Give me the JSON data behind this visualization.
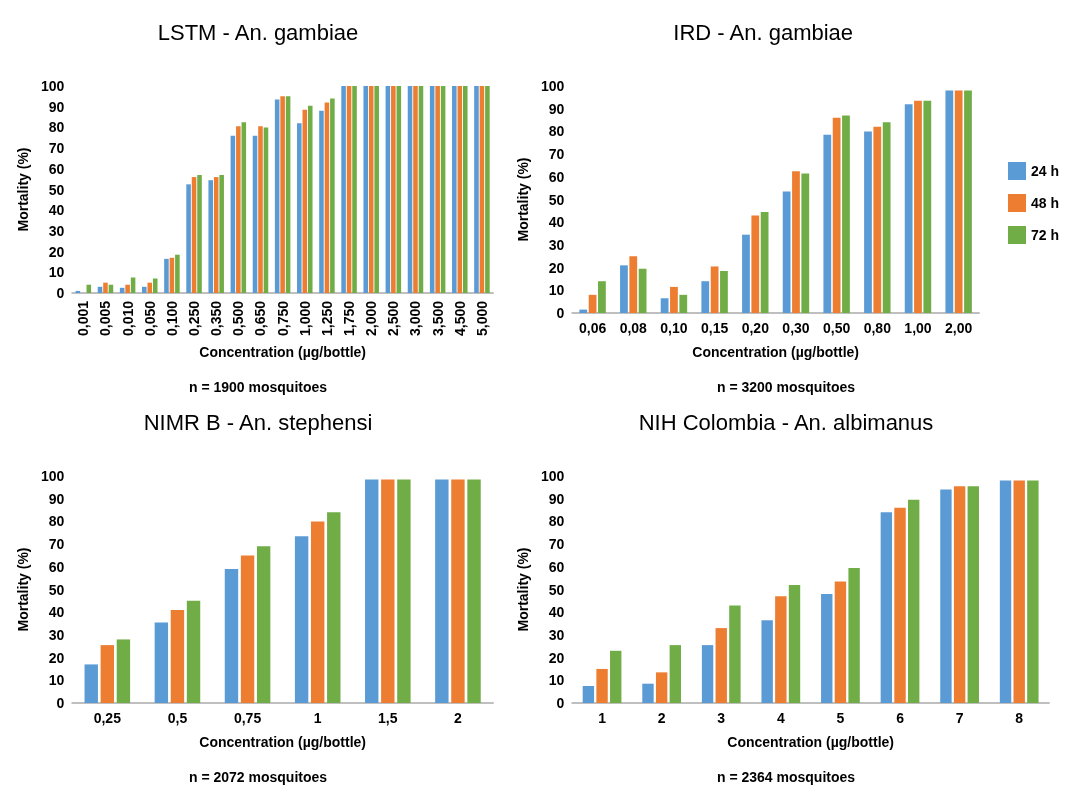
{
  "chart_data": [
    {
      "type": "bar",
      "title": "LSTM - An. gambiae",
      "xlabel": "Concentration (µg/bottle)",
      "ylabel": "Mortality (%)",
      "annotations": [
        "n = 1900 mosquitoes"
      ],
      "categories": [
        "0,001",
        "0,005",
        "0,010",
        "0,050",
        "0,100",
        "0,250",
        "0,350",
        "0,500",
        "0,650",
        "0,750",
        "1,000",
        "1,250",
        "1,750",
        "2,000",
        "2,500",
        "3,000",
        "3,500",
        "4,500",
        "5,000"
      ],
      "series": [
        {
          "color": "#5b9bd5",
          "values": [
            1,
            3,
            2.5,
            3,
            16.5,
            52.5,
            54.5,
            76,
            76,
            93.5,
            82,
            88,
            100,
            100,
            100,
            100,
            100,
            100,
            100
          ]
        },
        {
          "color": "#ed7d31",
          "values": [
            0,
            5,
            4,
            5,
            17,
            56,
            56,
            80.5,
            80.5,
            95,
            88.5,
            92,
            100,
            100,
            100,
            100,
            100,
            100,
            100
          ]
        },
        {
          "color": "#70ad47",
          "values": [
            4,
            4,
            7.5,
            7,
            18.5,
            57,
            57,
            82.5,
            80,
            95,
            90.5,
            94,
            100,
            100,
            100,
            100,
            100,
            100,
            100
          ]
        }
      ],
      "ylim": [
        0,
        100
      ],
      "yticks": [
        0,
        10,
        20,
        30,
        40,
        50,
        60,
        70,
        80,
        90,
        100
      ],
      "grid": false
    },
    {
      "type": "bar",
      "title": "IRD - An. gambiae",
      "xlabel": "Concentration (µg/bottle)",
      "ylabel": "Mortality (%)",
      "annotations": [
        "n = 3200 mosquitoes"
      ],
      "categories": [
        "0,06",
        "0,08",
        "0,10",
        "0,15",
        "0,20",
        "0,30",
        "0,50",
        "0,80",
        "1,00",
        "2,00"
      ],
      "series": [
        {
          "name": "24 h",
          "color": "#5b9bd5",
          "values": [
            1.5,
            21,
            6.5,
            14,
            34.5,
            53.5,
            78.5,
            80,
            92,
            98
          ]
        },
        {
          "name": "48 h",
          "color": "#ed7d31",
          "values": [
            8,
            25,
            11.5,
            20.5,
            43,
            62.5,
            86,
            82,
            93.5,
            98
          ]
        },
        {
          "name": "72 h",
          "color": "#70ad47",
          "values": [
            14,
            19.5,
            8,
            18.5,
            44.5,
            61.5,
            87,
            84,
            93.5,
            98
          ]
        }
      ],
      "ylim": [
        0,
        100
      ],
      "yticks": [
        0,
        10,
        20,
        30,
        40,
        50,
        60,
        70,
        80,
        90,
        100
      ],
      "grid": false,
      "legend": "right"
    },
    {
      "type": "bar",
      "title": "NIMR B - An. stephensi",
      "xlabel": "Concentration (µg/bottle)",
      "ylabel": "Mortality (%)",
      "annotations": [
        "n = 2072 mosquitoes"
      ],
      "categories": [
        "0,25",
        "0,5",
        "0,75",
        "1",
        "1,5",
        "2"
      ],
      "series": [
        {
          "color": "#5b9bd5",
          "values": [
            17,
            35.5,
            59,
            73.5,
            98.5,
            98.5
          ]
        },
        {
          "color": "#ed7d31",
          "values": [
            25.5,
            41,
            65,
            80,
            98.5,
            98.5
          ]
        },
        {
          "color": "#70ad47",
          "values": [
            28,
            45,
            69,
            84,
            98.5,
            98.5
          ]
        }
      ],
      "ylim": [
        0,
        100
      ],
      "yticks": [
        0,
        10,
        20,
        30,
        40,
        50,
        60,
        70,
        80,
        90,
        100
      ],
      "grid": false
    },
    {
      "type": "bar",
      "title": "NIH Colombia - An. albimanus",
      "xlabel": "Concentration (µg/bottle)",
      "ylabel": "Mortality (%)",
      "annotations": [
        "n = 2364 mosquitoes"
      ],
      "categories": [
        "1",
        "2",
        "3",
        "4",
        "5",
        "6",
        "7",
        "8"
      ],
      "series": [
        {
          "color": "#5b9bd5",
          "values": [
            7.5,
            8.5,
            25.5,
            36.5,
            48,
            84,
            94,
            98
          ]
        },
        {
          "color": "#ed7d31",
          "values": [
            15,
            13.5,
            33,
            47,
            53.5,
            86,
            95.5,
            98
          ]
        },
        {
          "color": "#70ad47",
          "values": [
            23,
            25.5,
            43,
            52,
            59.5,
            89.5,
            95.5,
            98
          ]
        }
      ],
      "ylim": [
        0,
        100
      ],
      "yticks": [
        0,
        10,
        20,
        30,
        40,
        50,
        60,
        70,
        80,
        90,
        100
      ],
      "grid": false
    }
  ]
}
